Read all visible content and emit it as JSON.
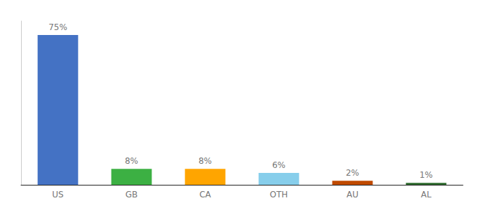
{
  "chart_data": {
    "type": "bar",
    "categories": [
      "US",
      "GB",
      "CA",
      "OTH",
      "AU",
      "AL"
    ],
    "values": [
      75,
      8,
      8,
      6,
      2,
      1
    ],
    "value_labels": [
      "75%",
      "8%",
      "8%",
      "6%",
      "2%",
      "1%"
    ],
    "colors": [
      "#4472C4",
      "#3CB043",
      "#FFA500",
      "#87CEEB",
      "#C04A00",
      "#2D6A2D"
    ],
    "ylim": [
      0,
      82
    ],
    "data_labels": true,
    "tick_labels": "x",
    "grid": false
  }
}
